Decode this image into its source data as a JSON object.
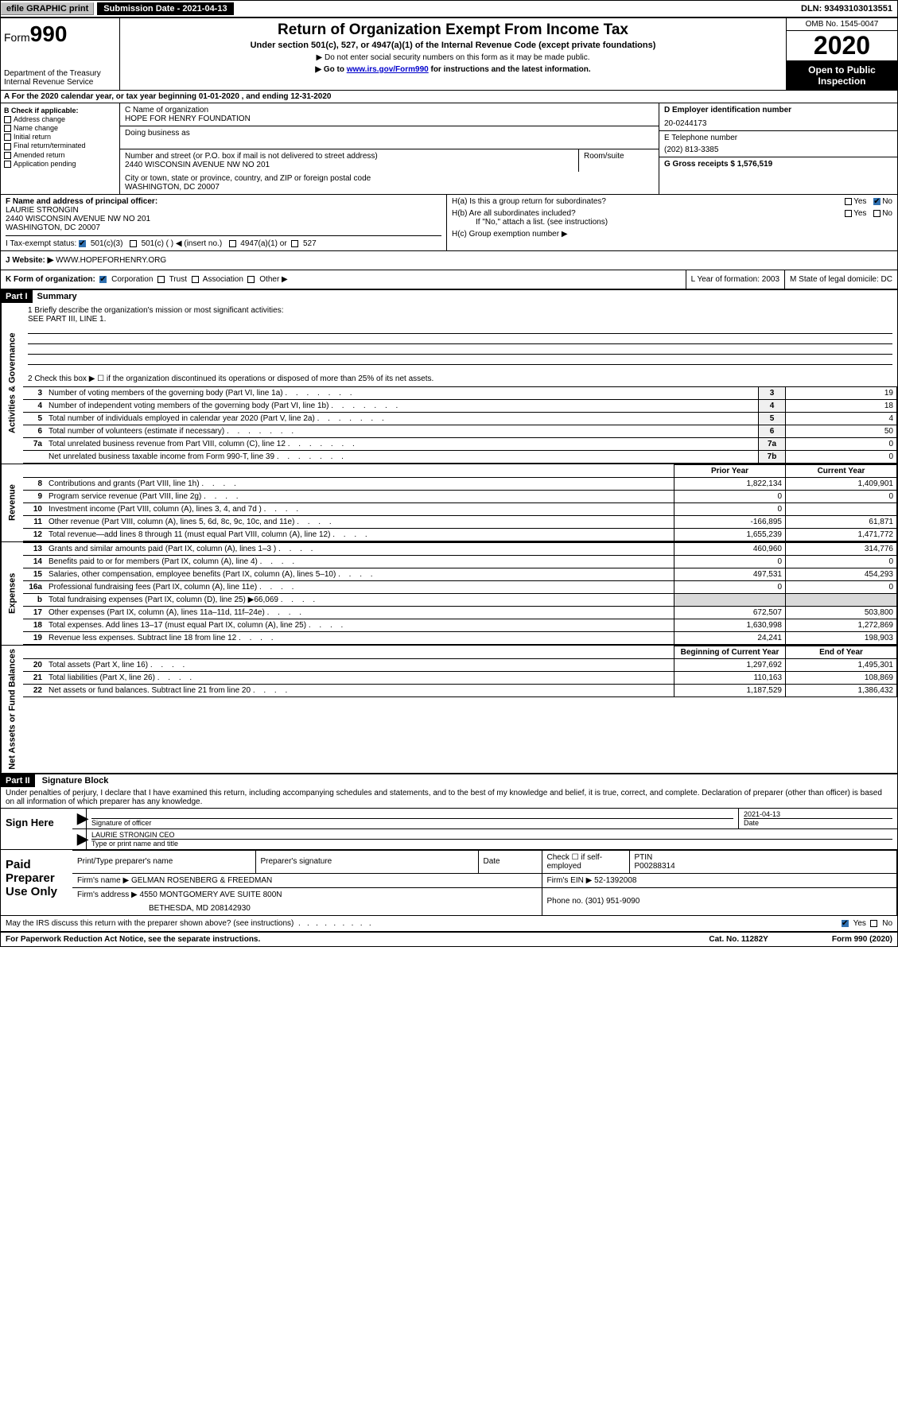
{
  "top": {
    "efile": "efile GRAPHIC print",
    "subdate_label": "Submission Date - 2021-04-13",
    "dln": "DLN: 93493103013551"
  },
  "header": {
    "form_label": "Form",
    "form_num": "990",
    "dept": "Department of the Treasury\nInternal Revenue Service",
    "title": "Return of Organization Exempt From Income Tax",
    "sub1": "Under section 501(c), 527, or 4947(a)(1) of the Internal Revenue Code (except private foundations)",
    "sub2": "▶ Do not enter social security numbers on this form as it may be made public.",
    "sub3_pre": "▶ Go to ",
    "sub3_link": "www.irs.gov/Form990",
    "sub3_post": " for instructions and the latest information.",
    "omb": "OMB No. 1545-0047",
    "year": "2020",
    "open": "Open to Public Inspection"
  },
  "row_a": "A For the 2020 calendar year, or tax year beginning 01-01-2020    , and ending 12-31-2020",
  "b": {
    "label": "B Check if applicable:",
    "opts": [
      "Address change",
      "Name change",
      "Initial return",
      "Final return/terminated",
      "Amended return",
      "Application pending"
    ]
  },
  "c": {
    "name_label": "C Name of organization",
    "name": "HOPE FOR HENRY FOUNDATION",
    "dba_label": "Doing business as",
    "addr_label": "Number and street (or P.O. box if mail is not delivered to street address)",
    "room_label": "Room/suite",
    "addr": "2440 WISCONSIN AVENUE NW NO 201",
    "city_label": "City or town, state or province, country, and ZIP or foreign postal code",
    "city": "WASHINGTON, DC  20007"
  },
  "d": {
    "label": "D Employer identification number",
    "value": "20-0244173"
  },
  "e": {
    "label": "E Telephone number",
    "value": "(202) 813-3385"
  },
  "g": {
    "label": "G Gross receipts $ ",
    "value": "1,576,519"
  },
  "f": {
    "label": "F  Name and address of principal officer:",
    "name": "LAURIE STRONGIN",
    "addr": "2440 WISCONSIN AVENUE NW NO 201\nWASHINGTON, DC  20007"
  },
  "h": {
    "a": "H(a)  Is this a group return for subordinates?",
    "b": "H(b)  Are all subordinates included?",
    "b_note": "If \"No,\" attach a list. (see instructions)",
    "c": "H(c)  Group exemption number ▶"
  },
  "i": {
    "label": "I   Tax-exempt status:",
    "opts": [
      "501(c)(3)",
      "501(c) (  ) ◀ (insert no.)",
      "4947(a)(1) or",
      "527"
    ]
  },
  "j": {
    "label": "J   Website: ▶  ",
    "value": "WWW.HOPEFORHENRY.ORG"
  },
  "k": {
    "label": "K Form of organization:",
    "opts": [
      "Corporation",
      "Trust",
      "Association",
      "Other ▶"
    ],
    "l": "L Year of formation: 2003",
    "m": "M State of legal domicile: DC"
  },
  "part1": {
    "header": "Part I",
    "title": "Summary",
    "q1": "1  Briefly describe the organization's mission or most significant activities:",
    "q1_val": "SEE PART III, LINE 1.",
    "q2": "2   Check this box ▶ ☐  if the organization discontinued its operations or disposed of more than 25% of its net assets."
  },
  "side_labels": {
    "ag": "Activities & Governance",
    "rev": "Revenue",
    "exp": "Expenses",
    "na": "Net Assets or Fund Balances"
  },
  "gov_lines": [
    {
      "n": "3",
      "desc": "Number of voting members of the governing body (Part VI, line 1a)",
      "ln": "3",
      "val": "19"
    },
    {
      "n": "4",
      "desc": "Number of independent voting members of the governing body (Part VI, line 1b)",
      "ln": "4",
      "val": "18"
    },
    {
      "n": "5",
      "desc": "Total number of individuals employed in calendar year 2020 (Part V, line 2a)",
      "ln": "5",
      "val": "4"
    },
    {
      "n": "6",
      "desc": "Total number of volunteers (estimate if necessary)",
      "ln": "6",
      "val": "50"
    },
    {
      "n": "7a",
      "desc": "Total unrelated business revenue from Part VIII, column (C), line 12",
      "ln": "7a",
      "val": "0"
    },
    {
      "n": "",
      "desc": "Net unrelated business taxable income from Form 990-T, line 39",
      "ln": "7b",
      "val": "0"
    }
  ],
  "two_col_header": {
    "prior": "Prior Year",
    "current": "Current Year"
  },
  "rev_lines": [
    {
      "n": "8",
      "desc": "Contributions and grants (Part VIII, line 1h)",
      "p": "1,822,134",
      "c": "1,409,901"
    },
    {
      "n": "9",
      "desc": "Program service revenue (Part VIII, line 2g)",
      "p": "0",
      "c": "0"
    },
    {
      "n": "10",
      "desc": "Investment income (Part VIII, column (A), lines 3, 4, and 7d )",
      "p": "0",
      "c": ""
    },
    {
      "n": "11",
      "desc": "Other revenue (Part VIII, column (A), lines 5, 6d, 8c, 9c, 10c, and 11e)",
      "p": "-166,895",
      "c": "61,871"
    },
    {
      "n": "12",
      "desc": "Total revenue—add lines 8 through 11 (must equal Part VIII, column (A), line 12)",
      "p": "1,655,239",
      "c": "1,471,772"
    }
  ],
  "exp_lines": [
    {
      "n": "13",
      "desc": "Grants and similar amounts paid (Part IX, column (A), lines 1–3 )",
      "p": "460,960",
      "c": "314,776"
    },
    {
      "n": "14",
      "desc": "Benefits paid to or for members (Part IX, column (A), line 4)",
      "p": "0",
      "c": "0"
    },
    {
      "n": "15",
      "desc": "Salaries, other compensation, employee benefits (Part IX, column (A), lines 5–10)",
      "p": "497,531",
      "c": "454,293"
    },
    {
      "n": "16a",
      "desc": "Professional fundraising fees (Part IX, column (A), line 11e)",
      "p": "0",
      "c": "0"
    },
    {
      "n": "b",
      "desc": "Total fundraising expenses (Part IX, column (D), line 25) ▶66,069",
      "p": "shade",
      "c": "shade"
    },
    {
      "n": "17",
      "desc": "Other expenses (Part IX, column (A), lines 11a–11d, 11f–24e)",
      "p": "672,507",
      "c": "503,800"
    },
    {
      "n": "18",
      "desc": "Total expenses. Add lines 13–17 (must equal Part IX, column (A), line 25)",
      "p": "1,630,998",
      "c": "1,272,869"
    },
    {
      "n": "19",
      "desc": "Revenue less expenses. Subtract line 18 from line 12",
      "p": "24,241",
      "c": "198,903"
    }
  ],
  "na_header": {
    "prior": "Beginning of Current Year",
    "current": "End of Year"
  },
  "na_lines": [
    {
      "n": "20",
      "desc": "Total assets (Part X, line 16)",
      "p": "1,297,692",
      "c": "1,495,301"
    },
    {
      "n": "21",
      "desc": "Total liabilities (Part X, line 26)",
      "p": "110,163",
      "c": "108,869"
    },
    {
      "n": "22",
      "desc": "Net assets or fund balances. Subtract line 21 from line 20",
      "p": "1,187,529",
      "c": "1,386,432"
    }
  ],
  "part2": {
    "header": "Part II",
    "title": "Signature Block",
    "perjury": "Under penalties of perjury, I declare that I have examined this return, including accompanying schedules and statements, and to the best of my knowledge and belief, it is true, correct, and complete. Declaration of preparer (other than officer) is based on all information of which preparer has any knowledge."
  },
  "sign": {
    "here": "Sign Here",
    "officer": "Signature of officer",
    "date": "2021-04-13",
    "date_label": "Date",
    "name": "LAURIE STRONGIN  CEO",
    "name_label": "Type or print name and title"
  },
  "paid": {
    "label": "Paid Preparer Use Only",
    "h1": "Print/Type preparer's name",
    "h2": "Preparer's signature",
    "h3": "Date",
    "h4a": "Check ☐ if self-employed",
    "h4b_label": "PTIN",
    "h4b": "P00288314",
    "firm_label": "Firm's name      ▶",
    "firm": "GELMAN ROSENBERG & FREEDMAN",
    "ein_label": "Firm's EIN ▶",
    "ein": "52-1392008",
    "addr_label": "Firm's address ▶",
    "addr1": "4550 MONTGOMERY AVE SUITE 800N",
    "addr2": "BETHESDA, MD  208142930",
    "phone_label": "Phone no.",
    "phone": "(301) 951-9090"
  },
  "discuss": "May the IRS discuss this return with the preparer shown above? (see instructions)",
  "footer": {
    "left": "For Paperwork Reduction Act Notice, see the separate instructions.",
    "mid": "Cat. No. 11282Y",
    "right": "Form 990 (2020)"
  }
}
